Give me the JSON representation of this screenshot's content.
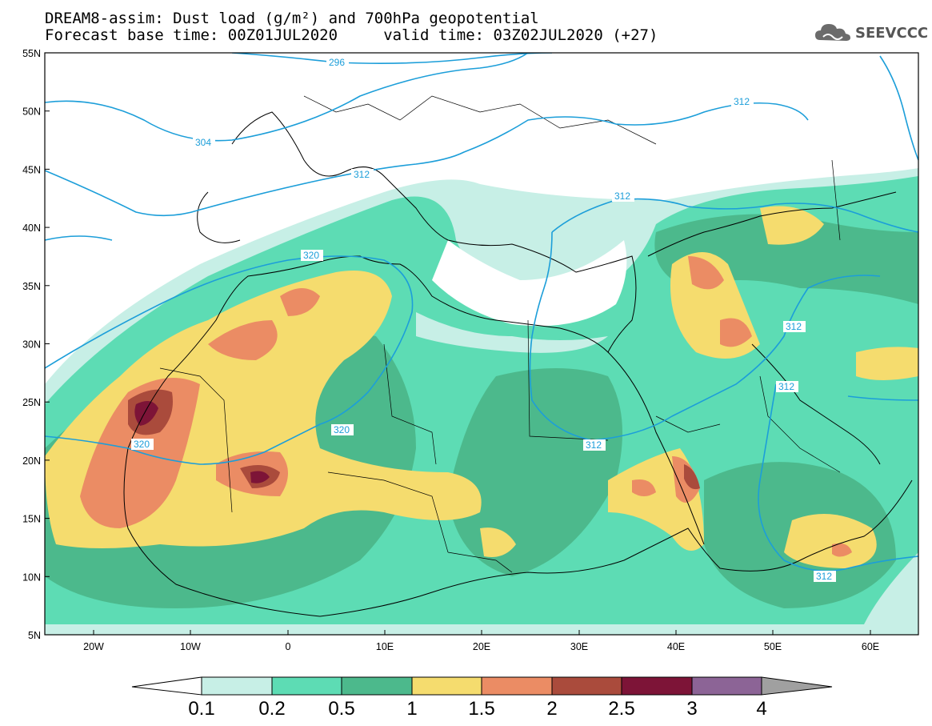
{
  "title": {
    "line1": "DREAM8-assim: Dust load (g/m²) and 700hPa geopotential",
    "line2": "Forecast base time: 00Z01JUL2020     valid time: 03Z02JUL2020 (+27)"
  },
  "logo": {
    "text": "SEEVCCC",
    "icon": "cloud-logo-icon"
  },
  "map": {
    "lon_range": [
      -25,
      65
    ],
    "lat_range": [
      5,
      55
    ],
    "lat_ticks": [
      "55N",
      "50N",
      "45N",
      "40N",
      "35N",
      "30N",
      "25N",
      "20N",
      "15N",
      "10N",
      "5N"
    ],
    "lon_ticks": [
      "20W",
      "10W",
      "0",
      "10E",
      "20E",
      "30E",
      "40E",
      "50E",
      "60E"
    ],
    "contour_labels": [
      "296",
      "304",
      "312",
      "312",
      "312",
      "320",
      "320",
      "320",
      "312",
      "312",
      "312",
      "312"
    ]
  },
  "colorbar": {
    "labels": [
      "0.1",
      "0.2",
      "0.5",
      "1",
      "1.5",
      "2",
      "2.5",
      "3",
      "4"
    ],
    "colors": [
      "#c7efe6",
      "#5ddcb4",
      "#4cb98c",
      "#f5dc6e",
      "#eb8c64",
      "#aa4b3c",
      "#7d1437",
      "#8c6496",
      "#a0a0a0"
    ]
  },
  "chart_data": {
    "type": "heatmap",
    "title": "DREAM8-assim: Dust load (g/m²) and 700hPa geopotential",
    "variable": "Dust load (g/m²)",
    "overlay": "700hPa geopotential (dam) contours",
    "levels": [
      0.1,
      0.2,
      0.5,
      1,
      1.5,
      2,
      2.5,
      3,
      4
    ],
    "contour_values": [
      296,
      304,
      312,
      320
    ],
    "x_ticks": [
      "20W",
      "10W",
      "0",
      "10E",
      "20E",
      "30E",
      "40E",
      "50E",
      "60E"
    ],
    "y_ticks": [
      "55N",
      "50N",
      "45N",
      "40N",
      "35N",
      "30N",
      "25N",
      "20N",
      "15N",
      "10N",
      "5N"
    ]
  }
}
